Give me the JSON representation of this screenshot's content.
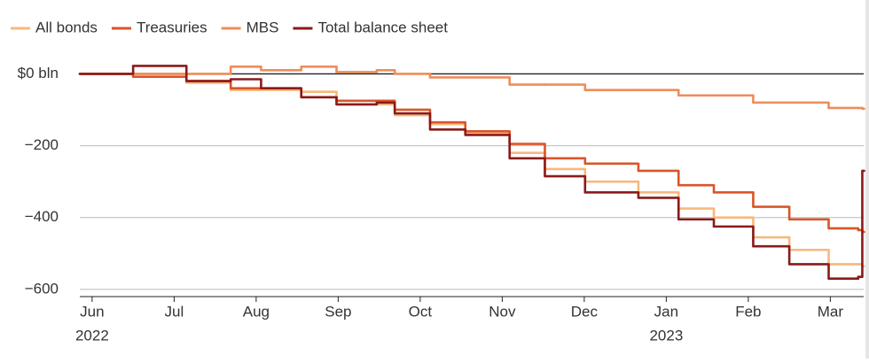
{
  "chart_data": {
    "type": "line",
    "step": true,
    "legend": "top-left",
    "x": [
      -0.15,
      0.5,
      1.15,
      1.69,
      2.06,
      2.55,
      2.98,
      3.47,
      3.69,
      4.12,
      4.55,
      5.09,
      5.52,
      6.01,
      6.66,
      7.15,
      7.58,
      8.06,
      8.5,
      8.98,
      9.34,
      9.39
    ],
    "series": [
      {
        "name": "All bonds",
        "color": "#f7b97c",
        "values": [
          0,
          0,
          -25,
          -45,
          -45,
          -50,
          -85,
          -85,
          -115,
          -140,
          -165,
          -220,
          -265,
          -300,
          -330,
          -375,
          -400,
          -455,
          -490,
          -530,
          -530,
          -535
        ]
      },
      {
        "name": "Treasuries",
        "color": "#d9552a",
        "values": [
          0,
          -8,
          -20,
          -40,
          -40,
          -65,
          -75,
          -75,
          -100,
          -135,
          -160,
          -195,
          -235,
          -250,
          -270,
          -310,
          -330,
          -370,
          -405,
          -430,
          -435,
          -440
        ]
      },
      {
        "name": "MBS",
        "color": "#ef8c5a",
        "values": [
          0,
          0,
          0,
          20,
          10,
          20,
          5,
          10,
          0,
          -10,
          -10,
          -30,
          -30,
          -45,
          -45,
          -60,
          -60,
          -80,
          -80,
          -95,
          -95,
          -97
        ]
      },
      {
        "name": "Total balance sheet",
        "color": "#8b1a1a",
        "values": [
          0,
          22,
          -20,
          -15,
          -40,
          -65,
          -85,
          -80,
          -110,
          -155,
          -170,
          -235,
          -285,
          -330,
          -345,
          -405,
          -425,
          -480,
          -530,
          -570,
          -565,
          -270
        ]
      }
    ],
    "xlim": [
      -0.15,
      9.45
    ],
    "xticks": [
      {
        "value": 0,
        "label": "Jun"
      },
      {
        "value": 1,
        "label": "Jul"
      },
      {
        "value": 2,
        "label": "Aug"
      },
      {
        "value": 3,
        "label": "Sep"
      },
      {
        "value": 4,
        "label": "Oct"
      },
      {
        "value": 5,
        "label": "Nov"
      },
      {
        "value": 6,
        "label": "Dec"
      },
      {
        "value": 7,
        "label": "Jan"
      },
      {
        "value": 8,
        "label": "Feb"
      },
      {
        "value": 9,
        "label": "Mar"
      }
    ],
    "x_year_labels": [
      {
        "value": 0,
        "label": "2022"
      },
      {
        "value": 7,
        "label": "2023"
      }
    ],
    "ylim": [
      -620,
      70
    ],
    "yticks": [
      {
        "value": 0,
        "label": "$0 bln"
      },
      {
        "value": -200,
        "label": "−200"
      },
      {
        "value": -400,
        "label": "−400"
      },
      {
        "value": -600,
        "label": "−600"
      }
    ],
    "grid": true
  }
}
